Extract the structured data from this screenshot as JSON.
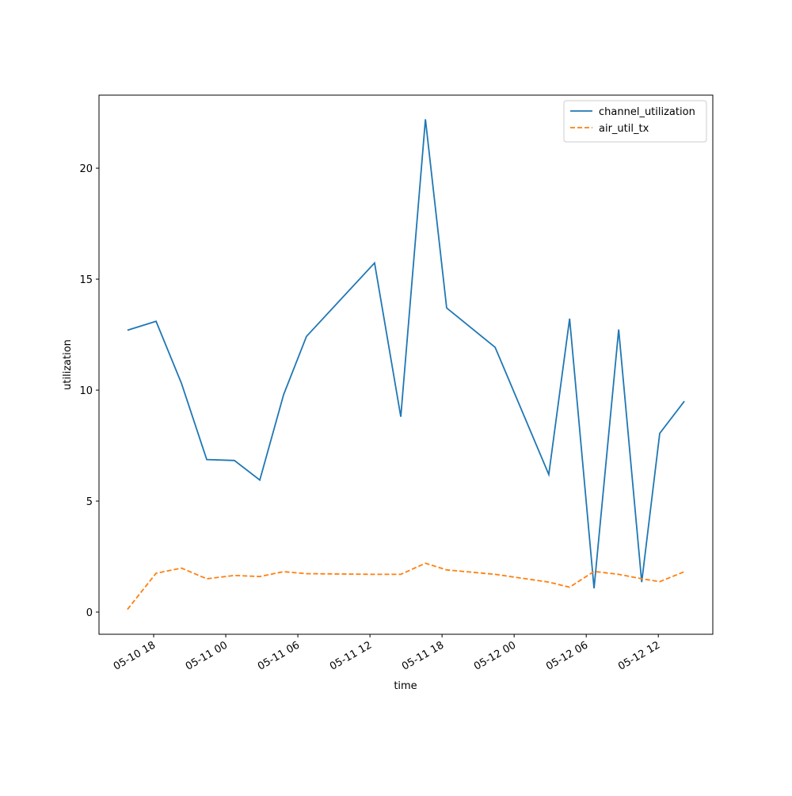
{
  "chart_data": {
    "type": "line",
    "xlabel": "time",
    "ylabel": "utilization",
    "x": [
      "05-10 15:49",
      "05-10 18:12",
      "05-10 20:19",
      "05-10 22:25",
      "05-11 00:43",
      "05-11 02:50",
      "05-11 04:49",
      "05-11 06:43",
      "05-11 12:23",
      "05-11 14:34",
      "05-11 16:37",
      "05-11 18:23",
      "05-11 22:25",
      "05-12 02:53",
      "05-12 04:37",
      "05-12 06:39",
      "05-12 08:42",
      "05-12 10:37",
      "05-12 12:07",
      "05-12 14:10"
    ],
    "series": [
      {
        "name": "channel_utilization",
        "color": "#1f77b4",
        "linestyle": "solid",
        "values": [
          12.7,
          13.1,
          10.3,
          6.87,
          6.83,
          5.95,
          9.8,
          12.42,
          15.73,
          8.8,
          22.2,
          13.7,
          11.93,
          6.2,
          13.22,
          1.07,
          12.73,
          1.35,
          8.05,
          9.5
        ]
      },
      {
        "name": "air_util_tx",
        "color": "#ff7f0e",
        "linestyle": "dashed",
        "values": [
          0.12,
          1.75,
          1.98,
          1.5,
          1.65,
          1.6,
          1.82,
          1.73,
          1.7,
          1.7,
          2.2,
          1.9,
          1.7,
          1.35,
          1.12,
          1.83,
          1.7,
          1.5,
          1.37,
          1.82
        ]
      }
    ],
    "xlim": [
      "05-10 13:27",
      "05-12 16:32"
    ],
    "xticks": [
      {
        "value": "05-10 18:00",
        "label": "05-10 18"
      },
      {
        "value": "05-11 00:00",
        "label": "05-11 00"
      },
      {
        "value": "05-11 06:00",
        "label": "05-11 06"
      },
      {
        "value": "05-11 12:00",
        "label": "05-11 12"
      },
      {
        "value": "05-11 18:00",
        "label": "05-11 18"
      },
      {
        "value": "05-12 00:00",
        "label": "05-12 00"
      },
      {
        "value": "05-12 06:00",
        "label": "05-12 06"
      },
      {
        "value": "05-12 12:00",
        "label": "05-12 12"
      }
    ],
    "ylim": [
      -1.0,
      23.29
    ],
    "yticks": [
      0,
      5,
      10,
      15,
      20
    ],
    "legend": "upper right",
    "grid": false
  }
}
